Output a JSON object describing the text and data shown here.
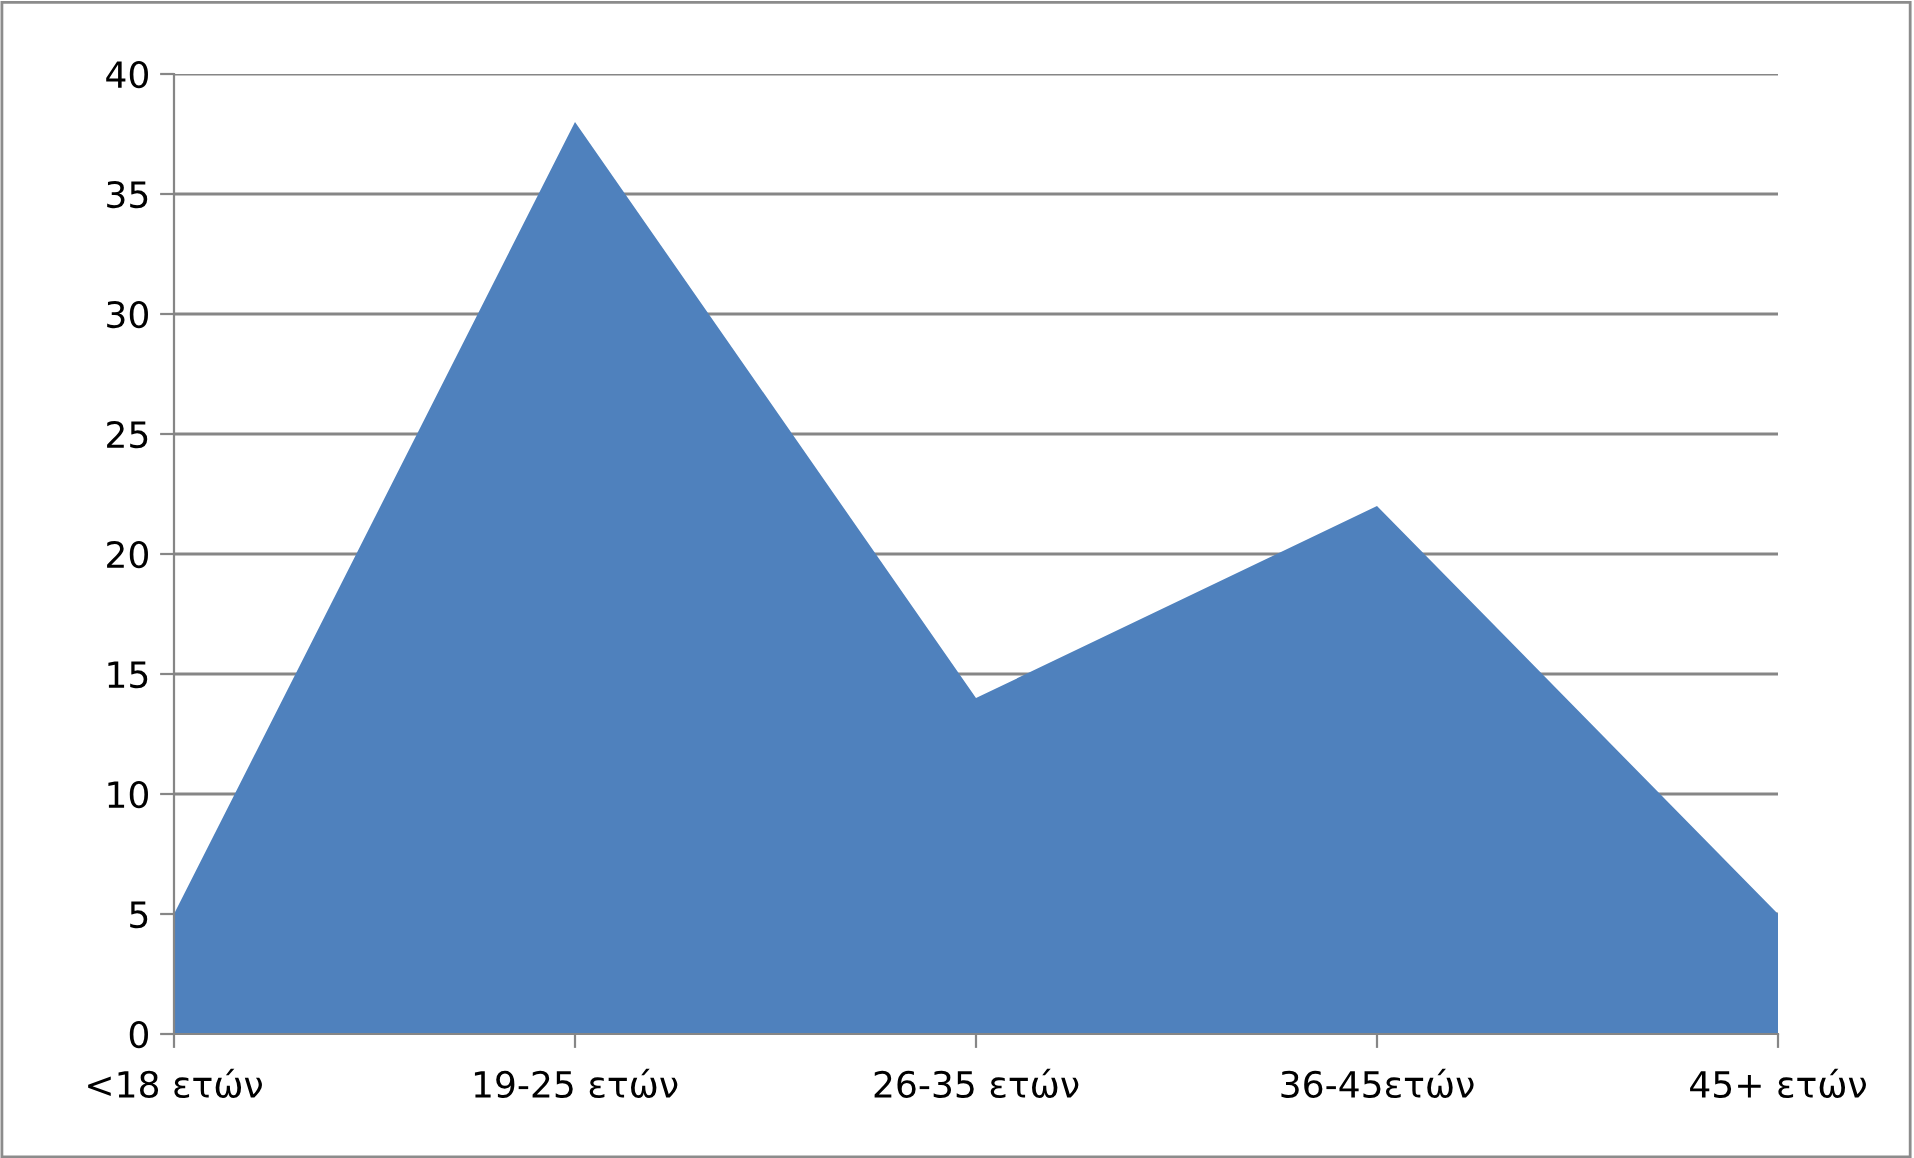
{
  "chart_data": {
    "type": "area",
    "categories": [
      "<18 ετών",
      "19-25 ετών",
      "26-35 ετών",
      "36-45ετών",
      "45+ ετών"
    ],
    "series": [
      {
        "color": "#4f81bd",
        "values": [
          5,
          38,
          14,
          22,
          5
        ]
      }
    ],
    "ylim": [
      0,
      40
    ],
    "yticks": [
      0,
      5,
      10,
      15,
      20,
      25,
      30,
      35,
      40
    ],
    "grid": "y"
  }
}
